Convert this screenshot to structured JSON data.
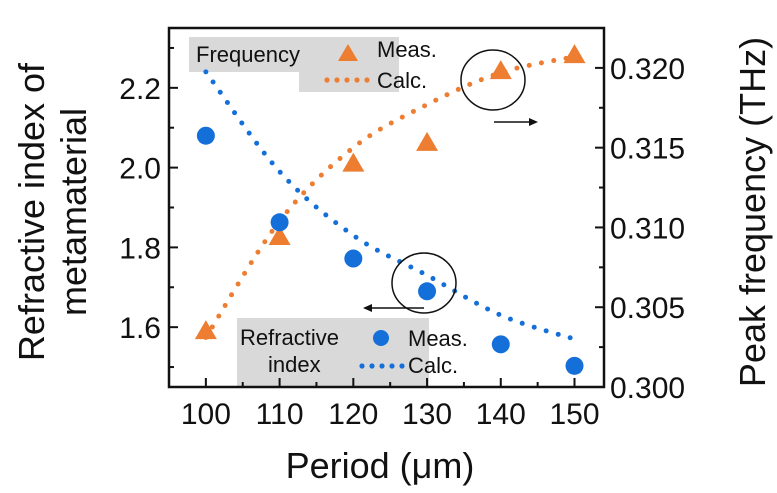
{
  "chart_data": {
    "type": "scatter",
    "xlabel": "Period (μm)",
    "ylabel_left": "Refractive index of metamaterial",
    "ylabel_left_lines": [
      "Refractive index of",
      "metamaterial"
    ],
    "ylabel_right": "Peak frequency (THz)",
    "xlim": [
      95,
      154
    ],
    "ylim_left": [
      1.45,
      2.35
    ],
    "ylim_right": [
      0.3,
      0.3225
    ],
    "x_ticks": [
      100,
      110,
      120,
      130,
      140,
      150
    ],
    "x_tick_labels": [
      "100",
      "110",
      "120",
      "130",
      "140",
      "150"
    ],
    "y_left_ticks": [
      1.6,
      1.8,
      2.0,
      2.2
    ],
    "y_left_tick_labels": [
      "1.6",
      "1.8",
      "2.0",
      "2.2"
    ],
    "y_right_ticks": [
      0.3,
      0.305,
      0.31,
      0.315,
      0.32
    ],
    "y_right_tick_labels": [
      "0.300",
      "0.305",
      "0.310",
      "0.315",
      "0.320"
    ],
    "grid": false,
    "x": [
      100,
      110,
      120,
      130,
      140,
      150
    ],
    "series": [
      {
        "group": "Frequency",
        "name": "Meas.",
        "axis": "right",
        "marker": "triangle",
        "color": "#ED7D31",
        "values": [
          0.3035,
          0.3094,
          0.314,
          0.3153,
          0.3198,
          0.3208
        ]
      },
      {
        "group": "Frequency",
        "name": "Calc.",
        "axis": "right",
        "marker": "dotted-line",
        "color": "#ED7D31",
        "values": [
          0.3031,
          0.3104,
          0.315,
          0.3177,
          0.3197,
          0.3207
        ]
      },
      {
        "group": "Refractive index",
        "name": "Meas.",
        "axis": "left",
        "marker": "circle",
        "color": "#1470D8",
        "values": [
          2.08,
          1.863,
          1.772,
          1.69,
          1.557,
          1.503
        ]
      },
      {
        "group": "Refractive index",
        "name": "Calc.",
        "axis": "left",
        "marker": "dotted-line",
        "color": "#1470D8",
        "values": [
          2.24,
          1.99,
          1.83,
          1.73,
          1.63,
          1.57
        ]
      }
    ],
    "legends": [
      {
        "title": "Frequency",
        "placement": "top-left",
        "entries": [
          "Meas.",
          "Calc."
        ]
      },
      {
        "title_lines": [
          "Refractive",
          "index"
        ],
        "placement": "bottom-center",
        "entries": [
          "Meas.",
          "Calc."
        ]
      }
    ],
    "legend_bg": "#D9D9D9",
    "annotations": [
      {
        "type": "ellipse-arrow",
        "at_x": 140,
        "series": "Frequency",
        "arrow": "right"
      },
      {
        "type": "ellipse-arrow",
        "at_x": 130,
        "series": "Refractive index",
        "arrow": "left"
      }
    ]
  }
}
